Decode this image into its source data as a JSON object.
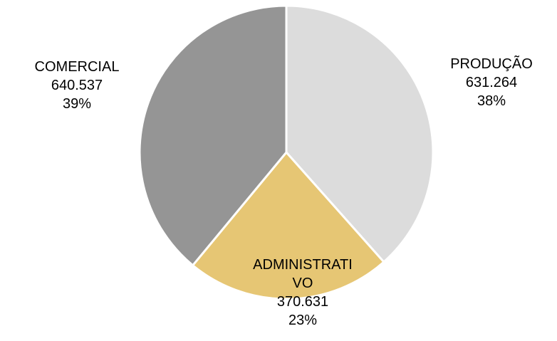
{
  "chart_data": {
    "type": "pie",
    "slices": [
      {
        "label_lines": [
          "PRODUÇÃO"
        ],
        "value_label": "631.264",
        "percent_label": "38%",
        "value": 631264,
        "color": "#dcdcdc"
      },
      {
        "label_lines": [
          "ADMINISTRATI",
          "VO"
        ],
        "value_label": "370.631",
        "percent_label": "23%",
        "value": 370631,
        "color": "#e6c674"
      },
      {
        "label_lines": [
          "COMERCIAL"
        ],
        "value_label": "640.537",
        "percent_label": "39%",
        "value": 640537,
        "color": "#959595"
      }
    ],
    "start": "top",
    "direction": "clockwise",
    "separator_color": "#ffffff"
  }
}
